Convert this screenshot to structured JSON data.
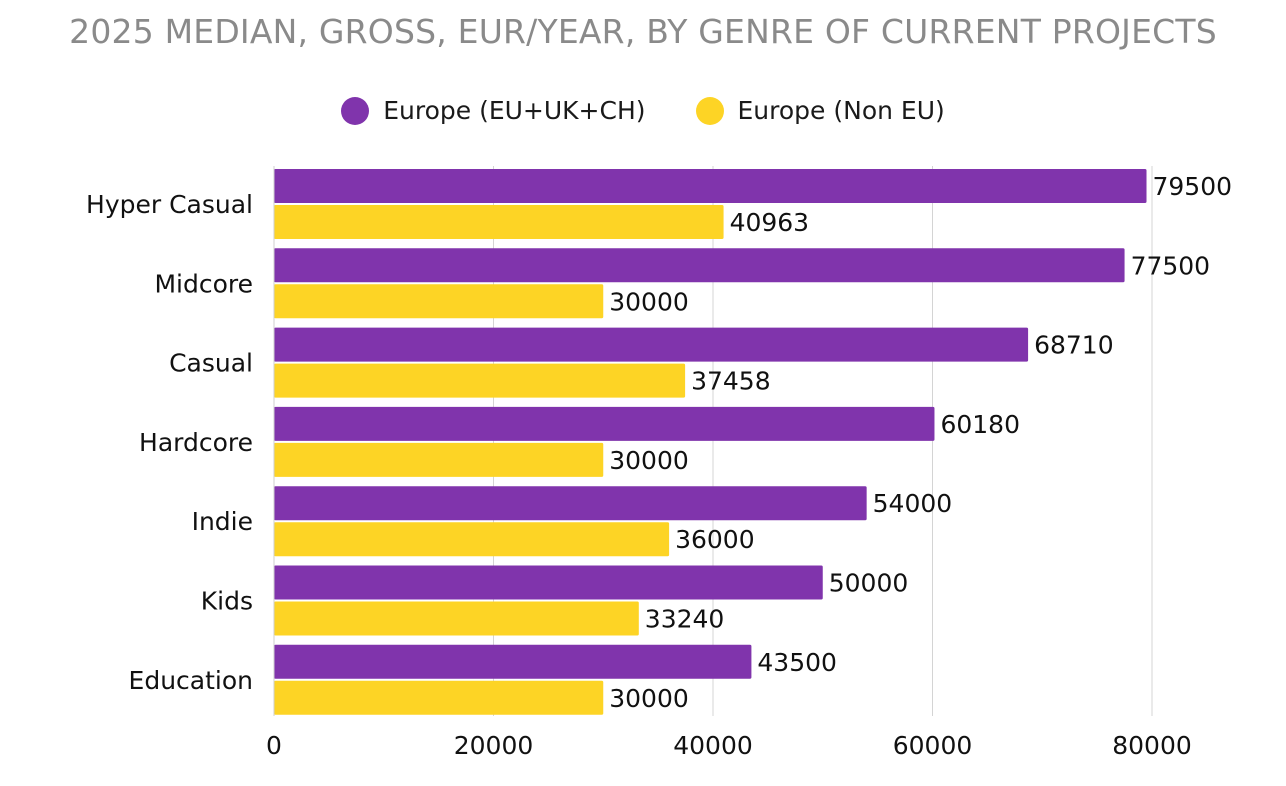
{
  "chart_data": {
    "type": "bar",
    "orientation": "horizontal",
    "title": "2025 MEDIAN, GROSS, EUR/YEAR, BY GENRE OF CURRENT PROJECTS",
    "categories": [
      "Hyper Casual",
      "Midcore",
      "Casual",
      "Hardcore",
      "Indie",
      "Kids",
      "Education"
    ],
    "series": [
      {
        "name": "Europe (EU+UK+CH)",
        "color": "#8034AC",
        "values": [
          79500,
          77500,
          68710,
          60180,
          54000,
          50000,
          43500
        ]
      },
      {
        "name": "Europe (Non EU)",
        "color": "#FDD425",
        "values": [
          40963,
          30000,
          37458,
          30000,
          36000,
          33240,
          30000
        ]
      }
    ],
    "xlim": [
      0,
      80000
    ],
    "xticks": [
      0,
      20000,
      40000,
      60000,
      80000
    ],
    "grid": "vertical",
    "legend": "top-center",
    "data_labels": true
  }
}
